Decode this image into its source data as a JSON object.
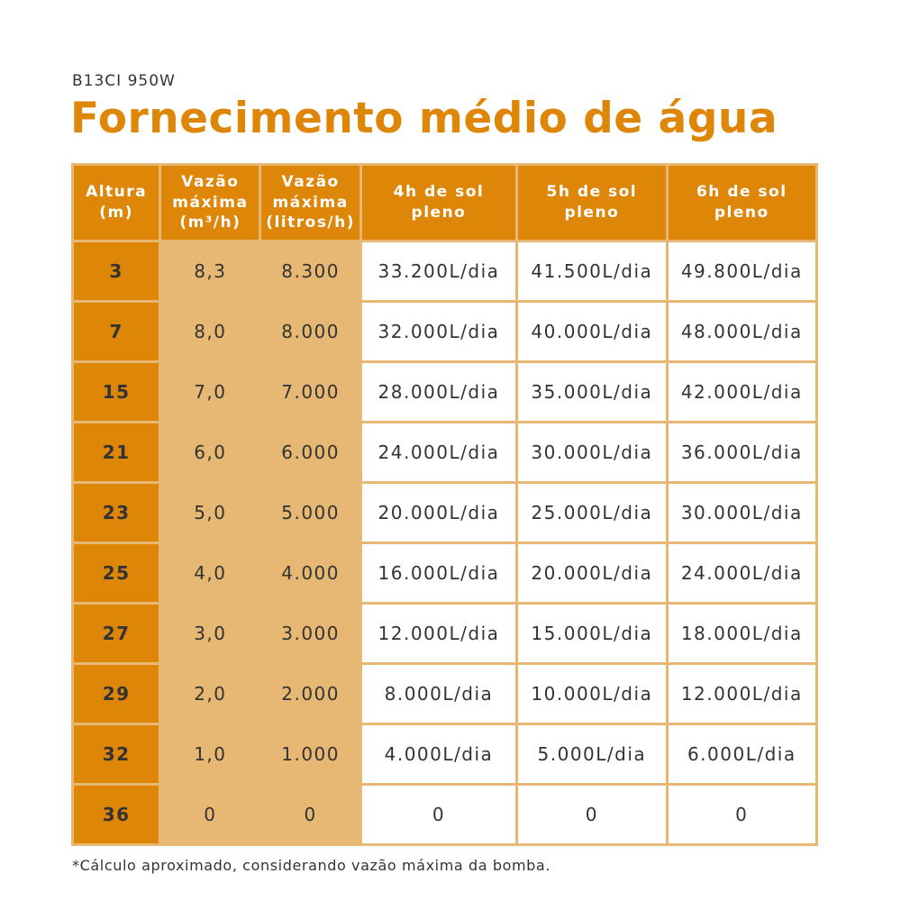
{
  "subtitle": "B13CI 950W",
  "title": "Fornecimento médio de água",
  "colors": {
    "accent": "#dd8608",
    "light": "#e7b874",
    "text": "#333333"
  },
  "table": {
    "headers": [
      "Altura\n(m)",
      "Vazão\nmáxima\n(m³/h)",
      "Vazão\nmáxima\n(litros/h)",
      "4h de sol\npleno",
      "5h de sol\npleno",
      "6h de sol\npleno"
    ],
    "rows": [
      [
        "3",
        "8,3",
        "8.300",
        "33.200L/dia",
        "41.500L/dia",
        "49.800L/dia"
      ],
      [
        "7",
        "8,0",
        "8.000",
        "32.000L/dia",
        "40.000L/dia",
        "48.000L/dia"
      ],
      [
        "15",
        "7,0",
        "7.000",
        "28.000L/dia",
        "35.000L/dia",
        "42.000L/dia"
      ],
      [
        "21",
        "6,0",
        "6.000",
        "24.000L/dia",
        "30.000L/dia",
        "36.000L/dia"
      ],
      [
        "23",
        "5,0",
        "5.000",
        "20.000L/dia",
        "25.000L/dia",
        "30.000L/dia"
      ],
      [
        "25",
        "4,0",
        "4.000",
        "16.000L/dia",
        "20.000L/dia",
        "24.000L/dia"
      ],
      [
        "27",
        "3,0",
        "3.000",
        "12.000L/dia",
        "15.000L/dia",
        "18.000L/dia"
      ],
      [
        "29",
        "2,0",
        "2.000",
        "8.000L/dia",
        "10.000L/dia",
        "12.000L/dia"
      ],
      [
        "32",
        "1,0",
        "1.000",
        "4.000L/dia",
        "5.000L/dia",
        "6.000L/dia"
      ],
      [
        "36",
        "0",
        "0",
        "0",
        "0",
        "0"
      ]
    ]
  },
  "footnote": "*Cálculo aproximado, considerando vazão máxima da bomba."
}
